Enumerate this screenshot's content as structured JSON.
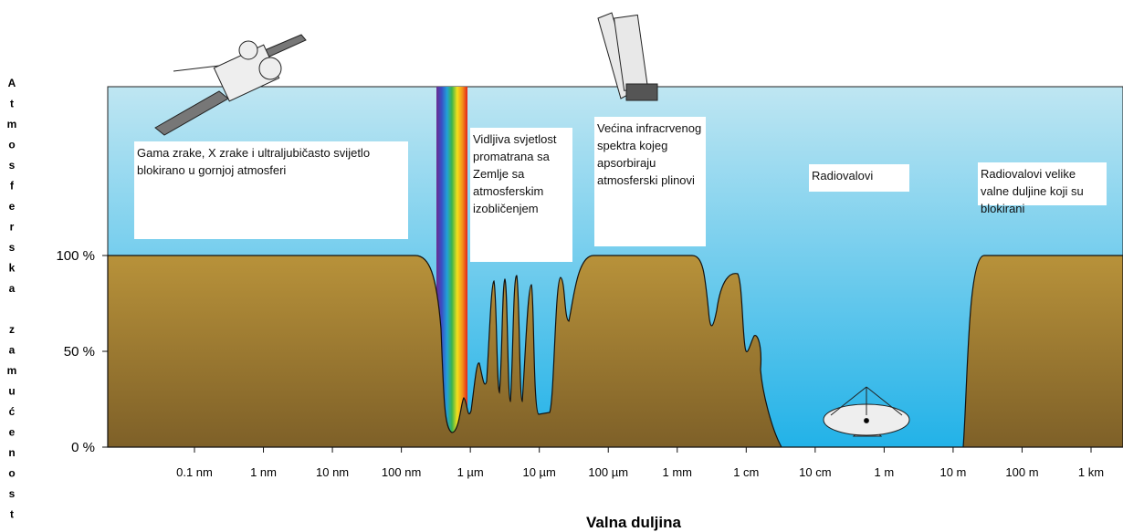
{
  "y_axis": {
    "label": "Atmosferska zamućenost",
    "ticks": [
      "100 %",
      "50 %",
      "0 %"
    ]
  },
  "x_axis": {
    "label": "Valna duljina",
    "ticks": [
      "0.1 nm",
      "1 nm",
      "10 nm",
      "100 nm",
      "1 µm",
      "10 µm",
      "100 µm",
      "1 mm",
      "1 cm",
      "10 cm",
      "1 m",
      "10 m",
      "100 m",
      "1 km"
    ]
  },
  "annotations": [
    "Gama zrake, X zrake i ultraljubičasto svijetlo blokirano u gornjoj atmosferi",
    "Vidljiva svjetlost promatrana sa Zemlje sa atmosferskim izobličenjem",
    "Većina infracrvenog spektra kojeg apsorbiraju atmosferski plinovi",
    "Radiovalovi",
    "Radiovalovi velike valne duljine koji su blokirani"
  ]
}
